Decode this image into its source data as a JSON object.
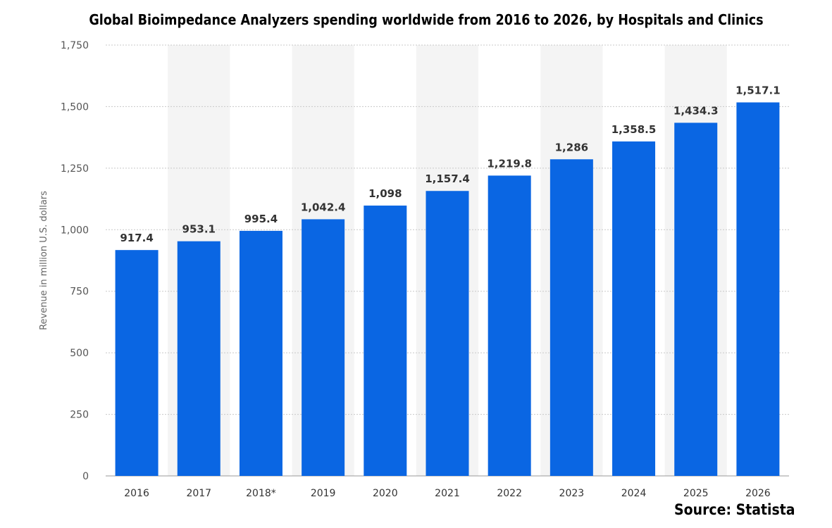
{
  "chart_data": {
    "type": "bar",
    "title": "Global Bioimpedance Analyzers spending worldwide from 2016 to 2026, by Hospitals and Clinics",
    "ylabel": "Revenue in million U.S. dollars",
    "xlabel": "",
    "categories": [
      "2016",
      "2017",
      "2018*",
      "2019",
      "2020",
      "2021",
      "2022",
      "2023",
      "2024",
      "2025",
      "2026"
    ],
    "values": [
      917.4,
      953.1,
      995.4,
      1042.4,
      1098,
      1157.4,
      1219.8,
      1286,
      1358.5,
      1434.3,
      1517.1
    ],
    "value_labels": [
      "917.4",
      "953.1",
      "995.4",
      "1,042.4",
      "1,098",
      "1,157.4",
      "1,219.8",
      "1,286",
      "1,358.5",
      "1,434.3",
      "1,517.1"
    ],
    "ylim": [
      0,
      1750
    ],
    "yticks": [
      0,
      250,
      500,
      750,
      1000,
      1250,
      1500,
      1750
    ],
    "ytick_labels": [
      "0",
      "250",
      "500",
      "750",
      "1,000",
      "1,250",
      "1,500",
      "1,750"
    ],
    "grid": true,
    "bar_color": "#0a66e3",
    "band_color": "#f4f4f4",
    "source": "Source: Statista"
  }
}
